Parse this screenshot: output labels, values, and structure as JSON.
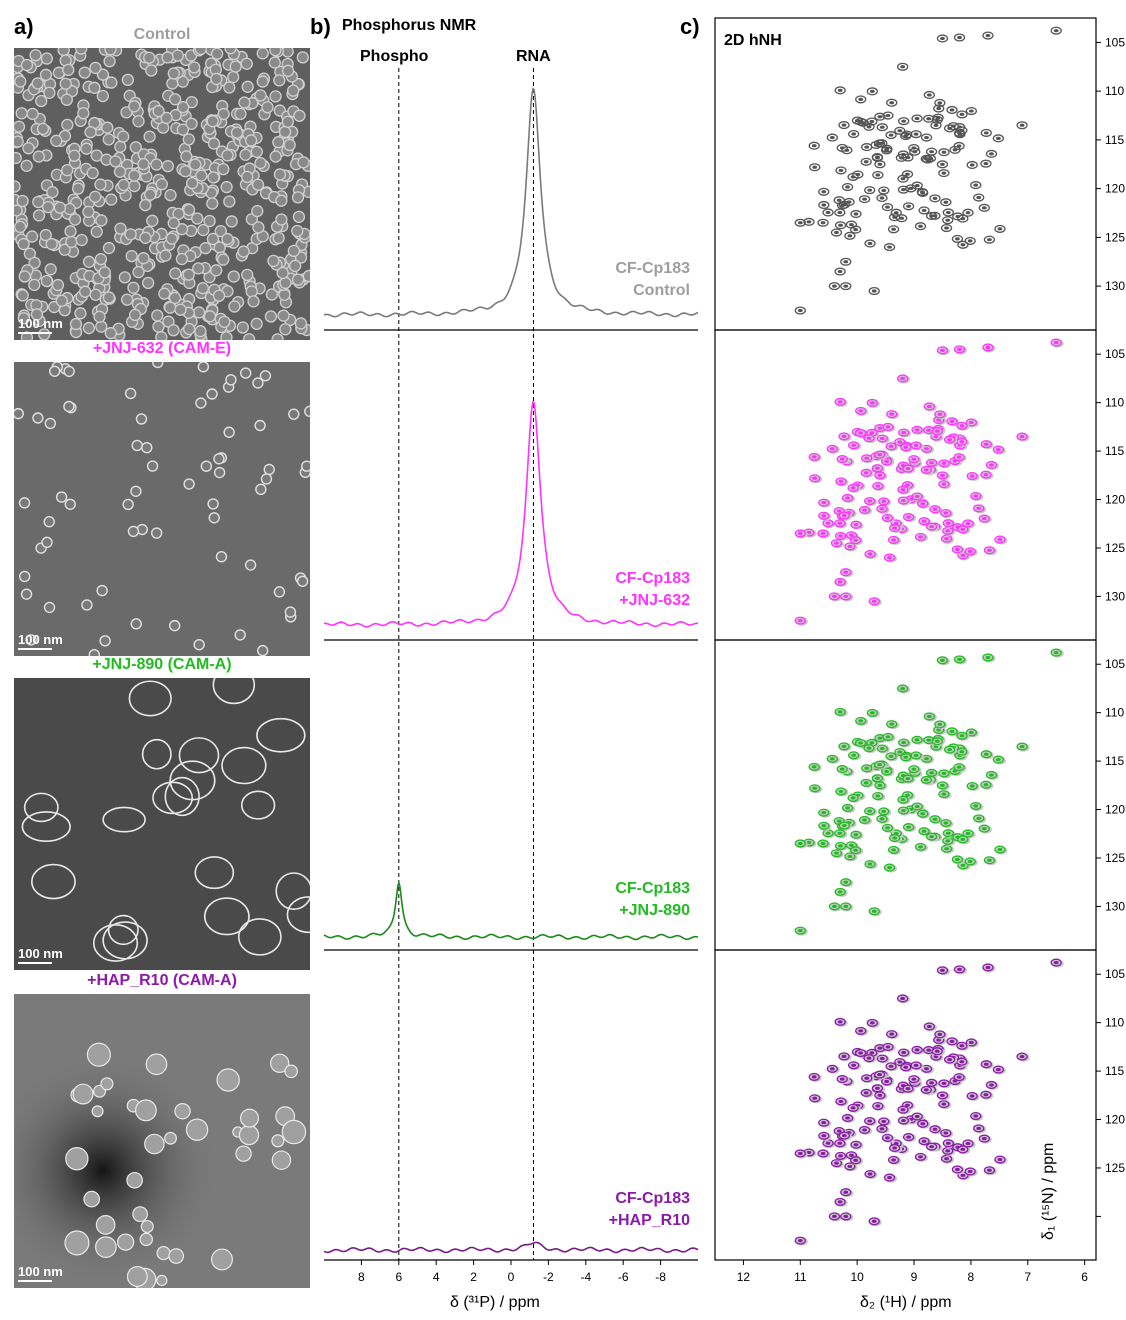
{
  "panels": {
    "a": {
      "label": "a)"
    },
    "b": {
      "label": "b)",
      "title": "Phosphorus NMR",
      "peak_labels": {
        "phospho": "Phospho",
        "rna": "RNA"
      },
      "xlabel": "δ (³¹P) / ppm",
      "xticks": [
        "8",
        "6",
        "4",
        "2",
        "0",
        "-2",
        "-4",
        "-6",
        "-8"
      ]
    },
    "c": {
      "label": "c)",
      "title": "2D hNH",
      "xlabel": "δ₂ (¹H) / ppm",
      "ylabel": "δ₁ (¹⁵N) / ppm",
      "xticks": [
        "12",
        "11",
        "10",
        "9",
        "8",
        "7",
        "6"
      ],
      "yticks": [
        "105",
        "110",
        "115",
        "120",
        "125",
        "130"
      ]
    }
  },
  "samples": [
    {
      "em_title": "Control",
      "color": "#9e9e9e",
      "nmr_line1": "CF-Cp183",
      "nmr_line2": "Control",
      "scale": "100 nm"
    },
    {
      "em_title": "+JNJ-632 (CAM-E)",
      "color": "#ff33ff",
      "nmr_line1": "CF-Cp183",
      "nmr_line2": "+JNJ-632",
      "scale": "100 nm"
    },
    {
      "em_title": "+JNJ-890 (CAM-A)",
      "color": "#22bb22",
      "nmr_line1": "CF-Cp183",
      "nmr_line2": "+JNJ-890",
      "scale": "100 nm"
    },
    {
      "em_title": "+HAP_R10 (CAM-A)",
      "color": "#8a1aa8",
      "nmr_line1": "CF-Cp183",
      "nmr_line2": "+HAP_R10",
      "scale": "100 nm"
    }
  ],
  "chart_data": [
    {
      "type": "line",
      "title": "Phosphorus NMR",
      "xlabel": "δ (³¹P) / ppm",
      "xlim": [
        10,
        -10
      ],
      "reference_lines_ppm": [
        6,
        -1.2
      ],
      "series": [
        {
          "name": "CF-Cp183 Control",
          "peaks": [
            {
              "center": -1.2,
              "height": 1.0
            }
          ]
        },
        {
          "name": "CF-Cp183 +JNJ-632",
          "peaks": [
            {
              "center": -1.2,
              "height": 1.0
            }
          ]
        },
        {
          "name": "CF-Cp183 +JNJ-890",
          "peaks": [
            {
              "center": 6.0,
              "height": 0.25
            }
          ]
        },
        {
          "name": "CF-Cp183 +HAP_R10",
          "peaks": [
            {
              "center": -1.2,
              "height": 0.03
            }
          ]
        }
      ]
    },
    {
      "type": "scatter",
      "title": "2D hNH",
      "xlabel": "δ₂ (¹H) / ppm",
      "ylabel": "δ₁ (¹⁵N) / ppm",
      "xlim": [
        12.5,
        5.8
      ],
      "ylim": [
        102.5,
        134.5
      ]
    }
  ]
}
